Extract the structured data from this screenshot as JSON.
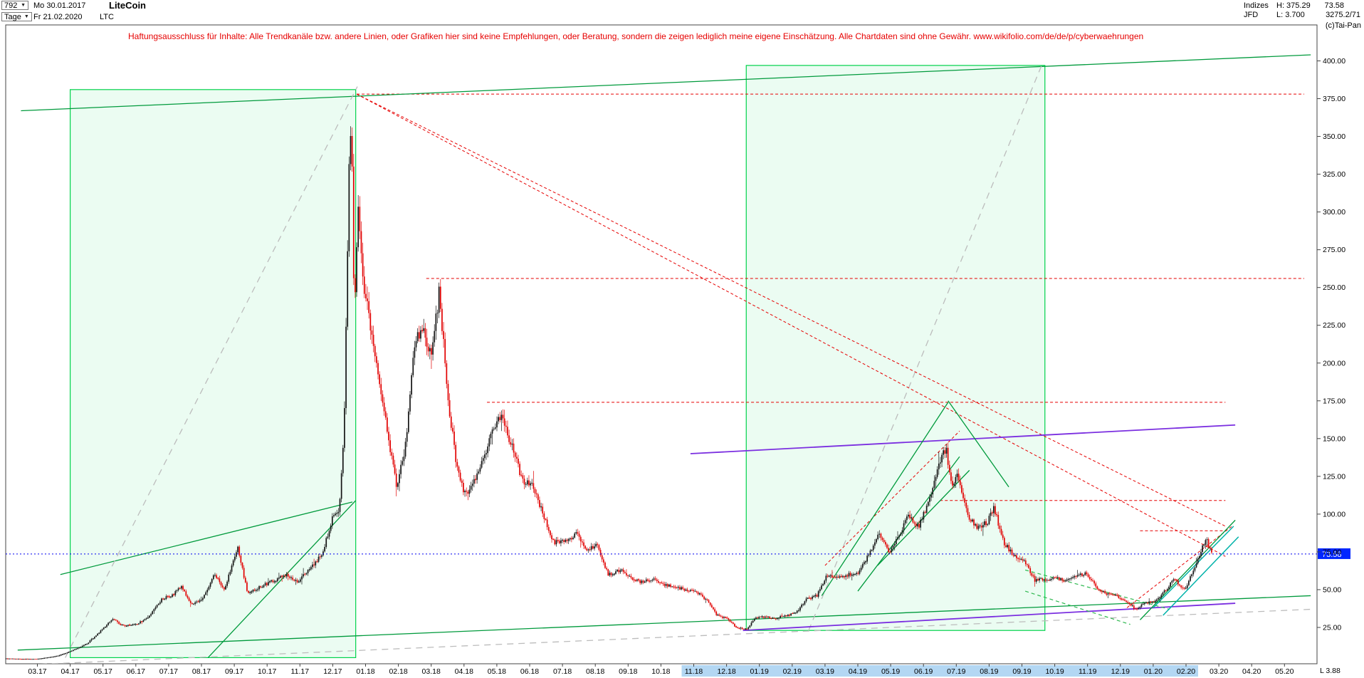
{
  "header": {
    "bars_count": "792",
    "dropdown_arrow": "▼",
    "start_date": "Mo 30.01.2017",
    "instrument": "LiteCoin",
    "period_label": "Tage",
    "end_date": "Fr 21.02.2020",
    "symbol": "LTC",
    "right": {
      "indizes_label": "Indizes",
      "high_label": "H: 375.29",
      "last_price": "73.58",
      "broker_label": "JFD",
      "low_label": "L: 3.700",
      "spread_value": "3275.2/71",
      "copyright": "(c)Tai-Pan"
    }
  },
  "disclaimer": "Haftungsausschluss für Inhalte: Alle Trendkanäle bzw. andere Linien, oder Grafiken hier sind keine Empfehlungen, oder Beratung, sondern die zeigen lediglich meine eigene Einschätzung. Alle Chartdaten sind ohne Gewähr.  www.wikifolio.com/de/de/p/cyberwaehrungen",
  "bottom_right_text": "L 3.88",
  "chart_data": {
    "type": "candlestick",
    "title": "LiteCoin (LTC) Tageschart 30.01.2017 - 21.02.2020",
    "bars": 792,
    "last_price": 73.58,
    "last_price_label": "73.58",
    "high": 375.29,
    "low": 3.7,
    "ylim": [
      0,
      422
    ],
    "grid": false,
    "y_tick_labels": [
      "400.00",
      "375.00",
      "350.00",
      "325.00",
      "300.00",
      "275.00",
      "250.00",
      "225.00",
      "200.00",
      "175.00",
      "150.00",
      "125.00",
      "100.00",
      "75.00",
      "50.00",
      "25.00"
    ],
    "x_labels": [
      "03.17",
      "04.17",
      "05.17",
      "06.17",
      "07.17",
      "08.17",
      "09.17",
      "10.17",
      "11.17",
      "12.17",
      "01.18",
      "02.18",
      "03.18",
      "04.18",
      "05.18",
      "06.18",
      "07.18",
      "08.18",
      "09.18",
      "10.18",
      "11.18",
      "12.18",
      "01.19",
      "02.19",
      "03.19",
      "04.19",
      "05.19",
      "06.19",
      "07.19",
      "08.19",
      "09.19",
      "10.19",
      "11.19",
      "12.19",
      "01.20",
      "02.20",
      "03.20",
      "04.20",
      "05.20"
    ],
    "x_highlight": {
      "from": 20,
      "to": 35
    },
    "colors": {
      "candle_up": "#141414",
      "candle_down": "#e10000",
      "zone_fill": "rgba(0,220,90,0.08)",
      "zone_border": "#00d24b",
      "level_red": "#e60000",
      "trend_green": "#009a3c",
      "trend_silver": "#bcbcbc",
      "trend_purple": "#7b2fe0",
      "trend_teal": "#00b2a9",
      "last_price_blue": "#0026ff",
      "axis_highlight": "#b3d7f3",
      "disclaimer_red": "#e60000"
    },
    "price_anchors": [
      [
        -0.95,
        4.2
      ],
      [
        -0.5,
        4.0
      ],
      [
        0,
        4.0
      ],
      [
        0.6,
        6
      ],
      [
        1.0,
        9
      ],
      [
        1.5,
        14
      ],
      [
        1.9,
        22
      ],
      [
        2.3,
        31
      ],
      [
        2.6,
        26
      ],
      [
        3.0,
        27
      ],
      [
        3.4,
        32
      ],
      [
        3.8,
        44
      ],
      [
        4.1,
        46
      ],
      [
        4.4,
        52
      ],
      [
        4.7,
        40
      ],
      [
        5.0,
        43
      ],
      [
        5.4,
        60
      ],
      [
        5.7,
        50
      ],
      [
        6.1,
        78
      ],
      [
        6.4,
        48
      ],
      [
        6.8,
        52
      ],
      [
        7.2,
        56
      ],
      [
        7.6,
        60
      ],
      [
        7.9,
        55
      ],
      [
        8.3,
        63
      ],
      [
        8.7,
        75
      ],
      [
        9.0,
        98
      ],
      [
        9.2,
        103
      ],
      [
        9.35,
        160
      ],
      [
        9.5,
        330
      ],
      [
        9.57,
        372
      ],
      [
        9.65,
        230
      ],
      [
        9.78,
        305
      ],
      [
        9.9,
        258
      ],
      [
        10.1,
        232
      ],
      [
        10.4,
        192
      ],
      [
        10.7,
        150
      ],
      [
        10.95,
        118
      ],
      [
        11.2,
        142
      ],
      [
        11.5,
        215
      ],
      [
        11.75,
        222
      ],
      [
        12.0,
        205
      ],
      [
        12.25,
        248
      ],
      [
        12.5,
        178
      ],
      [
        12.8,
        128
      ],
      [
        13.05,
        112
      ],
      [
        13.3,
        122
      ],
      [
        13.6,
        138
      ],
      [
        13.9,
        158
      ],
      [
        14.15,
        164
      ],
      [
        14.5,
        142
      ],
      [
        14.8,
        121
      ],
      [
        15.1,
        119
      ],
      [
        15.45,
        97
      ],
      [
        15.75,
        81
      ],
      [
        16.1,
        83
      ],
      [
        16.45,
        87
      ],
      [
        16.75,
        76
      ],
      [
        17.05,
        79
      ],
      [
        17.4,
        60
      ],
      [
        17.75,
        63
      ],
      [
        18.05,
        58
      ],
      [
        18.4,
        55
      ],
      [
        18.75,
        57
      ],
      [
        19.05,
        53
      ],
      [
        19.4,
        52
      ],
      [
        19.75,
        50
      ],
      [
        20.05,
        49
      ],
      [
        20.4,
        43
      ],
      [
        20.7,
        33
      ],
      [
        21.0,
        31
      ],
      [
        21.3,
        25
      ],
      [
        21.6,
        23.5
      ],
      [
        21.85,
        31
      ],
      [
        22.1,
        32
      ],
      [
        22.5,
        31
      ],
      [
        22.8,
        33
      ],
      [
        23.1,
        34
      ],
      [
        23.45,
        44
      ],
      [
        23.75,
        46
      ],
      [
        24.05,
        59
      ],
      [
        24.4,
        58
      ],
      [
        24.75,
        60
      ],
      [
        25.05,
        62
      ],
      [
        25.35,
        74
      ],
      [
        25.65,
        88
      ],
      [
        25.95,
        74
      ],
      [
        26.25,
        86
      ],
      [
        26.55,
        100
      ],
      [
        26.85,
        91
      ],
      [
        27.15,
        108
      ],
      [
        27.45,
        131
      ],
      [
        27.68,
        144
      ],
      [
        27.85,
        120
      ],
      [
        28.05,
        125
      ],
      [
        28.35,
        99
      ],
      [
        28.65,
        91
      ],
      [
        28.95,
        95
      ],
      [
        29.15,
        104
      ],
      [
        29.45,
        81
      ],
      [
        29.75,
        73
      ],
      [
        30.05,
        70
      ],
      [
        30.4,
        56
      ],
      [
        30.75,
        57
      ],
      [
        31.05,
        58
      ],
      [
        31.35,
        56
      ],
      [
        31.65,
        59
      ],
      [
        31.95,
        61
      ],
      [
        32.25,
        52
      ],
      [
        32.55,
        47
      ],
      [
        32.85,
        46
      ],
      [
        33.15,
        43
      ],
      [
        33.45,
        37
      ],
      [
        33.75,
        41
      ],
      [
        34.05,
        42
      ],
      [
        34.35,
        49
      ],
      [
        34.65,
        57
      ],
      [
        34.95,
        50
      ],
      [
        35.2,
        61
      ],
      [
        35.45,
        76
      ],
      [
        35.62,
        83
      ],
      [
        35.78,
        73.58
      ]
    ],
    "zones": [
      {
        "from": 1.0,
        "to": 9.7,
        "low": 5,
        "high": 381,
        "name": "rally-2017-zone"
      },
      {
        "from": 21.6,
        "to": 30.7,
        "low": 23,
        "high": 397,
        "name": "rally-2019-zone"
      }
    ],
    "levels": [
      {
        "price": 378,
        "from": 9.73,
        "to": 38.6
      },
      {
        "price": 256,
        "from": 11.85,
        "to": 38.6
      },
      {
        "price": 174,
        "from": 13.7,
        "to": 36.2
      },
      {
        "price": 109,
        "from": 27.5,
        "to": 36.2
      },
      {
        "price": 89,
        "from": 33.6,
        "to": 36.2
      }
    ],
    "trendlines": [
      {
        "style": "green",
        "pts": [
          [
            -0.5,
            367
          ],
          [
            38.8,
            404
          ]
        ],
        "name": "long-term-resistance"
      },
      {
        "style": "green",
        "pts": [
          [
            -0.6,
            10
          ],
          [
            38.8,
            46
          ]
        ],
        "name": "long-term-support"
      },
      {
        "style": "green",
        "pts": [
          [
            0.7,
            60
          ],
          [
            9.6,
            108
          ]
        ],
        "name": "channel-2017-lower"
      },
      {
        "style": "green",
        "pts": [
          [
            5.2,
            5
          ],
          [
            9.7,
            109
          ]
        ],
        "name": "fan-2017"
      },
      {
        "style": "silver_dashed",
        "pts": [
          [
            0.85,
            5
          ],
          [
            9.75,
            383
          ]
        ],
        "name": "rally-2017-dashed"
      },
      {
        "style": "silver_dashed",
        "pts": [
          [
            23.5,
            23
          ],
          [
            30.6,
            397
          ]
        ],
        "name": "rally-2019-dashed"
      },
      {
        "style": "silver_dashed",
        "pts": [
          [
            -0.6,
            0
          ],
          [
            38.8,
            37
          ]
        ],
        "name": "base-dashed"
      },
      {
        "style": "red_dashed",
        "pts": [
          [
            9.73,
            378
          ],
          [
            36.2,
            92
          ]
        ],
        "name": "downtrend-from-peak-1"
      },
      {
        "style": "red_dashed",
        "pts": [
          [
            9.73,
            378
          ],
          [
            36.2,
            72
          ]
        ],
        "name": "downtrend-from-peak-2"
      },
      {
        "style": "red_dashed",
        "pts": [
          [
            24.0,
            66
          ],
          [
            28.1,
            155
          ]
        ],
        "name": "rising-2019-red"
      },
      {
        "style": "red_dashed",
        "pts": [
          [
            33.2,
            38
          ],
          [
            36.4,
            92
          ]
        ],
        "name": "rising-2020-red"
      },
      {
        "style": "purple",
        "pts": [
          [
            19.9,
            140
          ],
          [
            36.5,
            159
          ]
        ],
        "name": "purple-resistance"
      },
      {
        "style": "purple",
        "pts": [
          [
            21.5,
            23
          ],
          [
            36.5,
            41
          ]
        ],
        "name": "purple-support"
      },
      {
        "style": "green",
        "pts": [
          [
            23.9,
            46
          ],
          [
            27.75,
            174
          ]
        ],
        "name": "steep-2019-1"
      },
      {
        "style": "green",
        "pts": [
          [
            25.0,
            49
          ],
          [
            28.1,
            138
          ]
        ],
        "name": "steep-2019-2"
      },
      {
        "style": "green",
        "pts": [
          [
            25.6,
            66
          ],
          [
            28.4,
            129
          ]
        ],
        "name": "steep-2019-3"
      },
      {
        "style": "green",
        "pts": [
          [
            27.75,
            175
          ],
          [
            29.6,
            118
          ]
        ],
        "name": "falling-after-peak-2019"
      },
      {
        "style": "green_dashed",
        "pts": [
          [
            30.1,
            63
          ],
          [
            34.5,
            37
          ]
        ],
        "name": "wedge-upper"
      },
      {
        "style": "green_dashed",
        "pts": [
          [
            30.1,
            49
          ],
          [
            33.3,
            27
          ]
        ],
        "name": "wedge-lower"
      },
      {
        "style": "green",
        "pts": [
          [
            33.6,
            30
          ],
          [
            36.5,
            96
          ]
        ],
        "name": "recovery-2020"
      },
      {
        "style": "teal",
        "pts": [
          [
            34.0,
            38
          ],
          [
            36.45,
            92
          ]
        ],
        "name": "teal-channel-upper"
      },
      {
        "style": "teal",
        "pts": [
          [
            34.3,
            33
          ],
          [
            36.6,
            85
          ]
        ],
        "name": "teal-channel-lower"
      }
    ]
  }
}
